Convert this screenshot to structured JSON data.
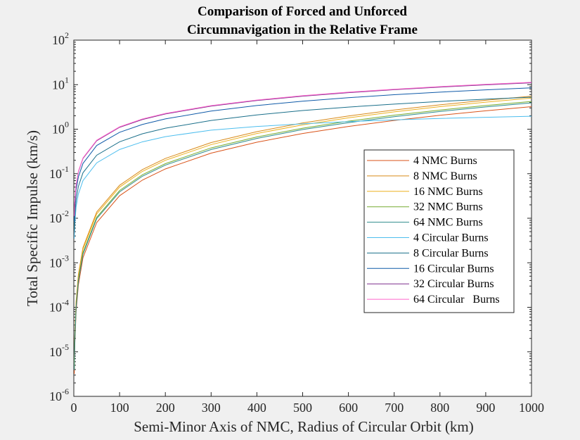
{
  "chart_data": {
    "type": "line",
    "title": [
      "Comparison of Forced and Unforced",
      "Circumnavigation in the Relative Frame"
    ],
    "xlabel": "Semi-Minor Axis of NMC, Radius of Circular Orbit (km)",
    "ylabel": "Total Specific Impulse (km/s)",
    "xlim": [
      0,
      1000
    ],
    "ylim": [
      1e-06,
      100
    ],
    "yscale": "log",
    "xticks": [
      0,
      100,
      200,
      300,
      400,
      500,
      600,
      700,
      800,
      900,
      1000
    ],
    "xtick_labels": [
      "0",
      "100",
      "200",
      "300",
      "400",
      "500",
      "600",
      "700",
      "800",
      "900",
      "1000"
    ],
    "yticks": [
      1e-06,
      1e-05,
      0.0001,
      0.001,
      0.01,
      0.1,
      1,
      10,
      100
    ],
    "ytick_labels": [
      {
        "base": "10",
        "exp": "-6"
      },
      {
        "base": "10",
        "exp": "-5"
      },
      {
        "base": "10",
        "exp": "-4"
      },
      {
        "base": "10",
        "exp": "-3"
      },
      {
        "base": "10",
        "exp": "-2"
      },
      {
        "base": "10",
        "exp": "-1"
      },
      {
        "base": "10",
        "exp": "0"
      },
      {
        "base": "10",
        "exp": "1"
      },
      {
        "base": "10",
        "exp": "2"
      }
    ],
    "grid": false,
    "legend": "right",
    "x": [
      1,
      2,
      5,
      10,
      20,
      50,
      100,
      150,
      200,
      300,
      400,
      500,
      600,
      700,
      800,
      900,
      1000
    ],
    "series": [
      {
        "name": "4 NMC Burns",
        "color": "#d95319",
        "values": [
          3.2e-06,
          1.3e-05,
          8e-05,
          0.00032,
          0.0013,
          0.008,
          0.032,
          0.072,
          0.128,
          0.29,
          0.51,
          0.8,
          1.15,
          1.57,
          2.05,
          2.59,
          3.2
        ]
      },
      {
        "name": "8 NMC Burns",
        "color": "#d98a19",
        "values": [
          5.5e-06,
          2.2e-05,
          0.000138,
          0.00055,
          0.0022,
          0.0138,
          0.055,
          0.124,
          0.22,
          0.5,
          0.88,
          1.38,
          1.98,
          2.7,
          3.52,
          4.46,
          5.5
        ]
      },
      {
        "name": "16 NMC Burns",
        "color": "#edb120",
        "values": [
          5e-06,
          2e-05,
          0.000125,
          0.0005,
          0.002,
          0.0125,
          0.05,
          0.113,
          0.2,
          0.45,
          0.8,
          1.25,
          1.8,
          2.45,
          3.2,
          4.05,
          5.0
        ]
      },
      {
        "name": "32 NMC Burns",
        "color": "#77ac30",
        "values": [
          4.2e-06,
          1.68e-05,
          0.000105,
          0.00042,
          0.00168,
          0.0105,
          0.042,
          0.095,
          0.168,
          0.38,
          0.67,
          1.05,
          1.51,
          2.06,
          2.69,
          3.4,
          4.2
        ]
      },
      {
        "name": "64 NMC Burns",
        "color": "#2e8b8b",
        "values": [
          3.9e-06,
          1.56e-05,
          9.75e-05,
          0.00039,
          0.00156,
          0.0098,
          0.039,
          0.088,
          0.156,
          0.35,
          0.62,
          0.98,
          1.4,
          1.91,
          2.5,
          3.16,
          3.9
        ]
      },
      {
        "name": "4 Circular Burns",
        "color": "#4dbeee",
        "values": [
          0.0035,
          0.007,
          0.018,
          0.035,
          0.07,
          0.175,
          0.35,
          0.52,
          0.68,
          0.95,
          1.15,
          1.32,
          1.48,
          1.62,
          1.74,
          1.85,
          1.95
        ]
      },
      {
        "name": "8 Circular Burns",
        "color": "#1a6f8a",
        "values": [
          0.0052,
          0.0105,
          0.026,
          0.052,
          0.105,
          0.26,
          0.52,
          0.79,
          1.05,
          1.57,
          2.09,
          2.62,
          3.14,
          3.66,
          4.19,
          4.71,
          5.23
        ]
      },
      {
        "name": "16 Circular Burns",
        "color": "#0f5aa8",
        "values": [
          0.0085,
          0.017,
          0.043,
          0.085,
          0.17,
          0.43,
          0.85,
          1.28,
          1.7,
          2.55,
          3.4,
          4.25,
          5.1,
          5.95,
          6.8,
          7.65,
          8.5
        ]
      },
      {
        "name": "32 Circular Burns",
        "color": "#7e2f8e",
        "values": [
          0.011,
          0.022,
          0.055,
          0.11,
          0.22,
          0.55,
          1.1,
          1.65,
          2.2,
          3.3,
          4.4,
          5.5,
          6.6,
          7.7,
          8.8,
          9.9,
          11.0
        ]
      },
      {
        "name": "64 Circular   Burns",
        "color": "#ff66cc",
        "values": [
          0.0113,
          0.0226,
          0.0565,
          0.113,
          0.226,
          0.565,
          1.13,
          1.7,
          2.26,
          3.39,
          4.52,
          5.65,
          6.78,
          7.91,
          9.04,
          10.2,
          11.3
        ]
      }
    ]
  }
}
